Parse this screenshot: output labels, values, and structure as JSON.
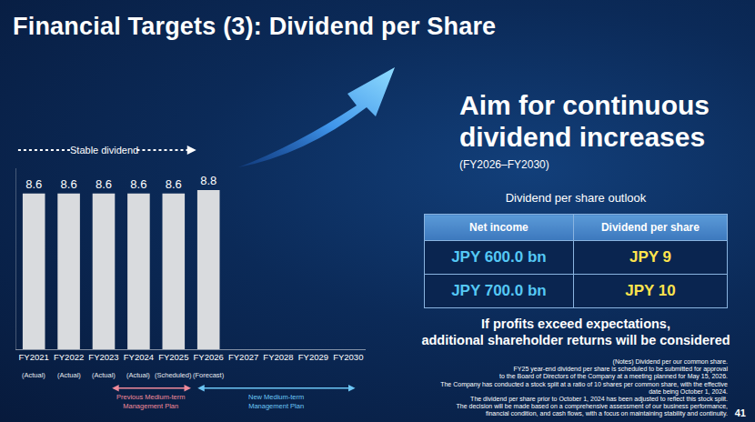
{
  "title": "Financial Targets (3): Dividend per Share",
  "chart_data": {
    "type": "bar",
    "categories": [
      "FY2021",
      "FY2022",
      "FY2023",
      "FY2024",
      "FY2025",
      "FY2026",
      "FY2027",
      "FY2028",
      "FY2029",
      "FY2030"
    ],
    "category_notes": [
      "(Actual)",
      "(Actual)",
      "(Actual)",
      "(Actual)",
      "(Scheduled)",
      "(Forecast)",
      null,
      null,
      null,
      null
    ],
    "values": [
      8.6,
      8.6,
      8.6,
      8.6,
      8.6,
      8.8,
      null,
      null,
      null,
      null
    ],
    "color": "#d9dbde",
    "data_labels": true,
    "tick_labels": "x",
    "ylim": [
      0,
      10
    ],
    "annotations": [
      "Stable dividend"
    ],
    "plans": [
      {
        "text": [
          "Previous Medium-term",
          "Management Plan"
        ],
        "color": "#f08a9a"
      },
      {
        "text": [
          "New Medium-term",
          "Management Plan"
        ],
        "color": "#6cc6f5"
      }
    ]
  },
  "panel": {
    "headline": "Aim for continuous dividend increases",
    "period": "(FY2026–FY2030)",
    "table_title": "Dividend per share outlook",
    "table": {
      "header": [
        "Net income",
        "Dividend per share"
      ],
      "rows": [
        [
          "JPY 600.0 bn",
          "JPY 9"
        ],
        [
          "JPY 700.0 bn",
          "JPY 10"
        ]
      ]
    },
    "extra": [
      "If profits exceed expectations,",
      "additional shareholder returns will be considered"
    ],
    "notes": [
      "(Notes) Dividend per our common share.",
      "FY25 year-end dividend per share is scheduled to be submitted for approval",
      "to the Board of Directors of the Company at a meeting planned for May 15, 2026.",
      "The Company has conducted a stock split at a ratio of 10 shares per common share, with the effective",
      "date being October 1, 2024.",
      "The dividend per share prior to October 1, 2024 has been adjusted to reflect this stock split.",
      "The decision will be made based on a comprehensive assessment of our business performance,",
      "financial condition, and cash flows, with a focus on maintaining stability and continuity."
    ]
  },
  "page_number": "41"
}
